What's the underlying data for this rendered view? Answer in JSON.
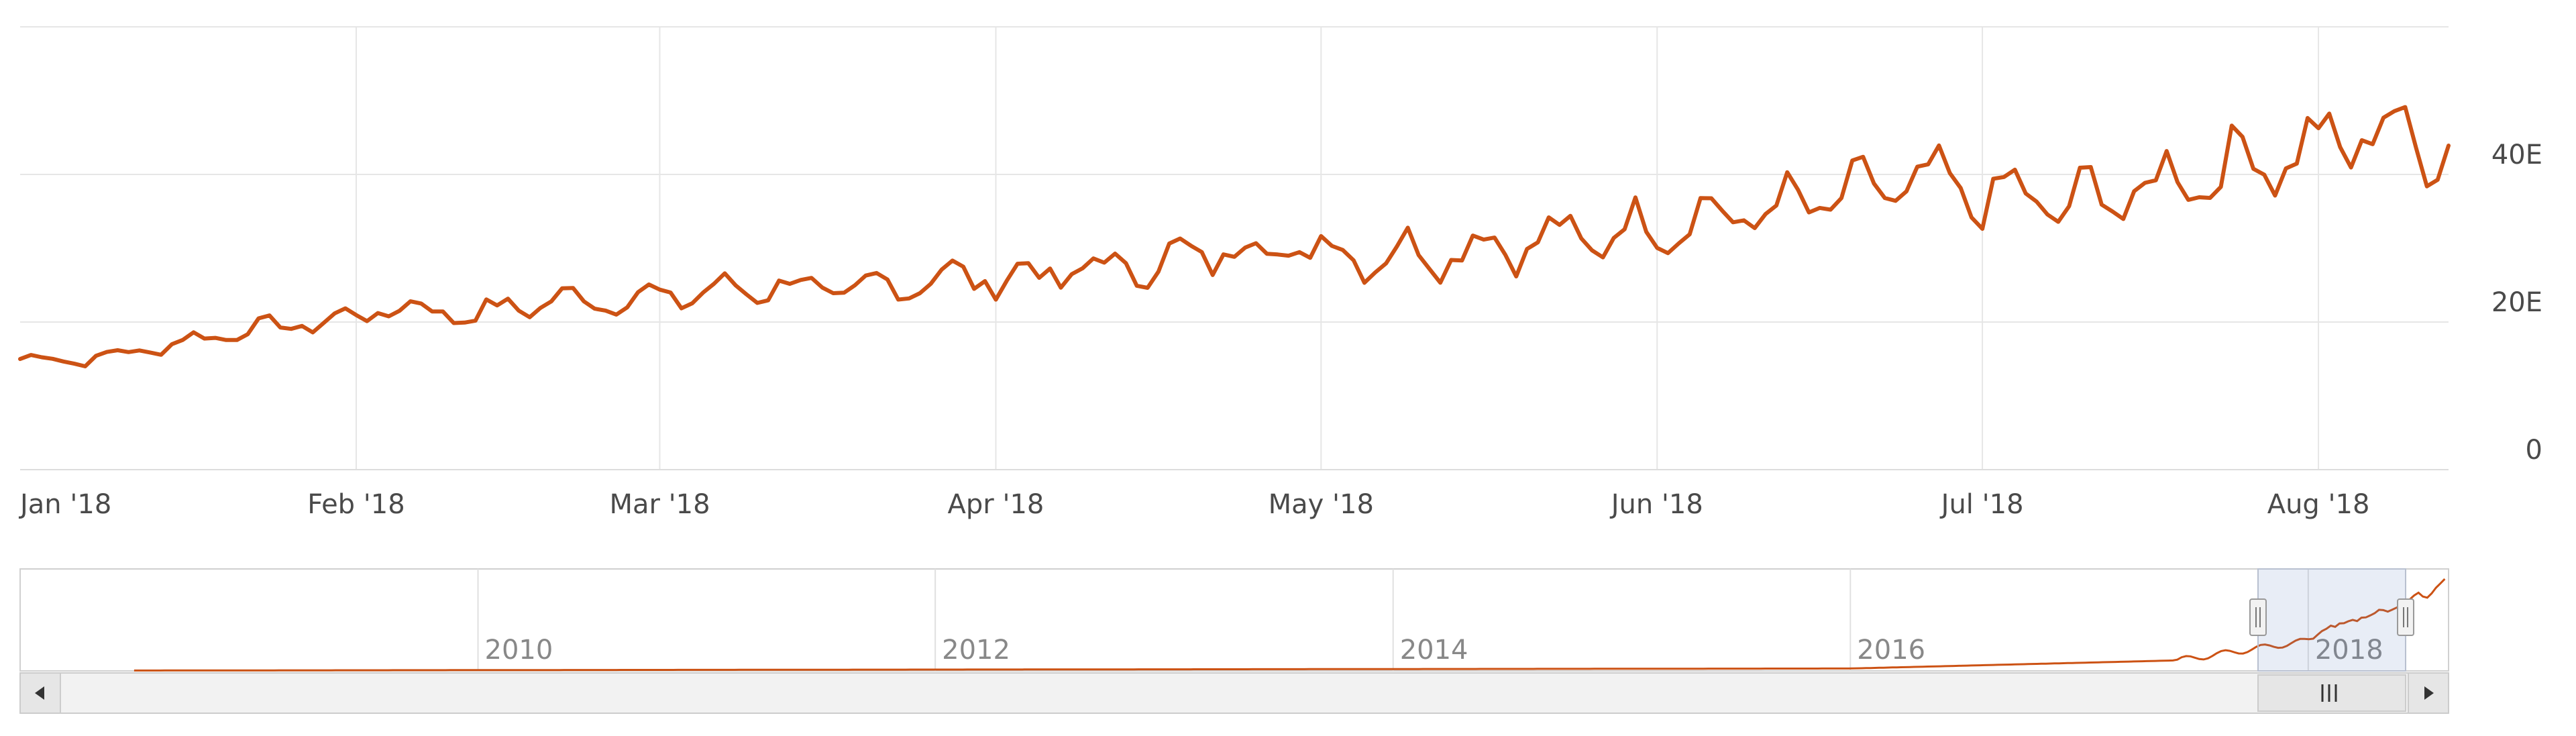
{
  "chart_data": {
    "type": "line",
    "y_axis": {
      "position": "right",
      "ticks": [
        "0",
        "20E",
        "40E"
      ],
      "tick_values": [
        0,
        20,
        40
      ],
      "range": [
        0,
        60
      ],
      "unit": "E"
    },
    "x_axis": {
      "ticks": [
        "Jan '18",
        "Feb '18",
        "Mar '18",
        "Apr '18",
        "May '18",
        "Jun '18",
        "Jul '18",
        "Aug '18"
      ],
      "range": [
        "2018-01-01",
        "2018-08-13"
      ]
    },
    "grid": true,
    "line_color": "#cc5214",
    "series": [
      {
        "x": [
          "2018-01-01",
          "2018-01-08",
          "2018-01-15",
          "2018-01-22",
          "2018-01-29",
          "2018-02-05",
          "2018-02-12",
          "2018-02-19",
          "2018-02-26",
          "2018-03-05",
          "2018-03-12",
          "2018-03-19",
          "2018-03-26",
          "2018-04-02",
          "2018-04-09",
          "2018-04-16",
          "2018-04-23",
          "2018-04-30",
          "2018-05-07",
          "2018-05-14",
          "2018-05-21",
          "2018-05-28",
          "2018-06-04",
          "2018-06-11",
          "2018-06-18",
          "2018-06-25",
          "2018-07-02",
          "2018-07-09",
          "2018-07-16",
          "2018-07-23",
          "2018-07-30",
          "2018-08-06",
          "2018-08-13"
        ],
        "values": [
          15,
          15,
          17,
          19,
          20,
          22,
          21,
          23,
          23,
          24,
          25,
          24,
          26,
          26,
          27,
          28,
          30,
          30,
          29,
          30,
          31,
          32,
          34,
          35,
          37,
          39,
          37,
          36,
          38,
          41,
          43,
          46,
          44
        ]
      }
    ],
    "navigator": {
      "ticks": [
        "2010",
        "2012",
        "2014",
        "2016",
        "2018"
      ],
      "range": [
        "2008",
        "2018-08-13"
      ],
      "selected": [
        "2018-01-01",
        "2018-08-13"
      ]
    }
  }
}
